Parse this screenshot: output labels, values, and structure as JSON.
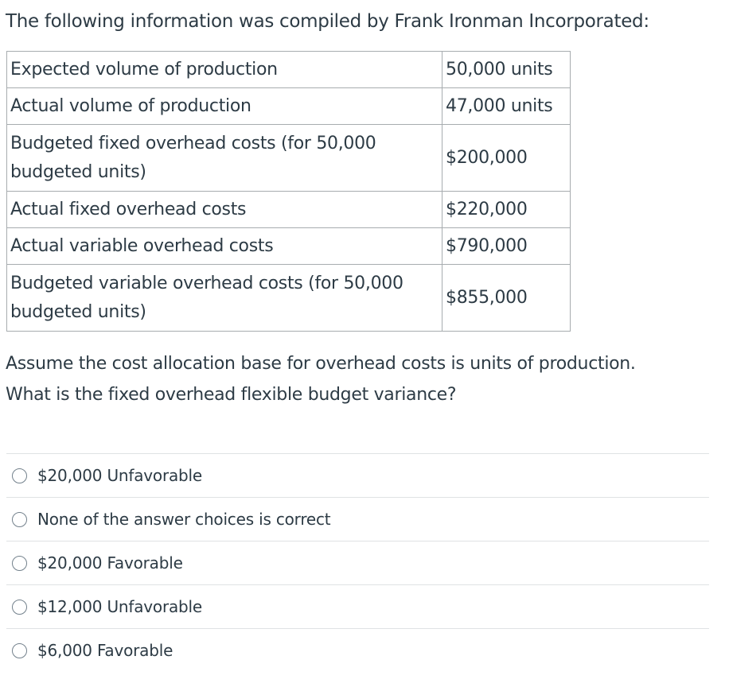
{
  "intro": "The following information was compiled by Frank Ironman Incorporated:",
  "table": {
    "rows": [
      {
        "label": "Expected volume of production",
        "value": "50,000 units"
      },
      {
        "label": "Actual volume of production",
        "value": "47,000 units"
      },
      {
        "label": "Budgeted fixed overhead costs (for 50,000 budgeted units)",
        "value": "$200,000"
      },
      {
        "label": "Actual fixed overhead costs",
        "value": "$220,000"
      },
      {
        "label": "Actual variable overhead costs",
        "value": "$790,000"
      },
      {
        "label": "Budgeted variable overhead costs (for 50,000 budgeted units)",
        "value": "$855,000"
      }
    ]
  },
  "question": {
    "line1": "Assume the cost allocation base for overhead costs is units of production.",
    "line2": "What is the fixed overhead flexible budget variance?"
  },
  "answers": [
    {
      "label": "$20,000 Unfavorable"
    },
    {
      "label": "None of the answer choices is correct"
    },
    {
      "label": "$20,000 Favorable"
    },
    {
      "label": "$12,000 Unfavorable"
    },
    {
      "label": "$6,000 Favorable"
    }
  ]
}
